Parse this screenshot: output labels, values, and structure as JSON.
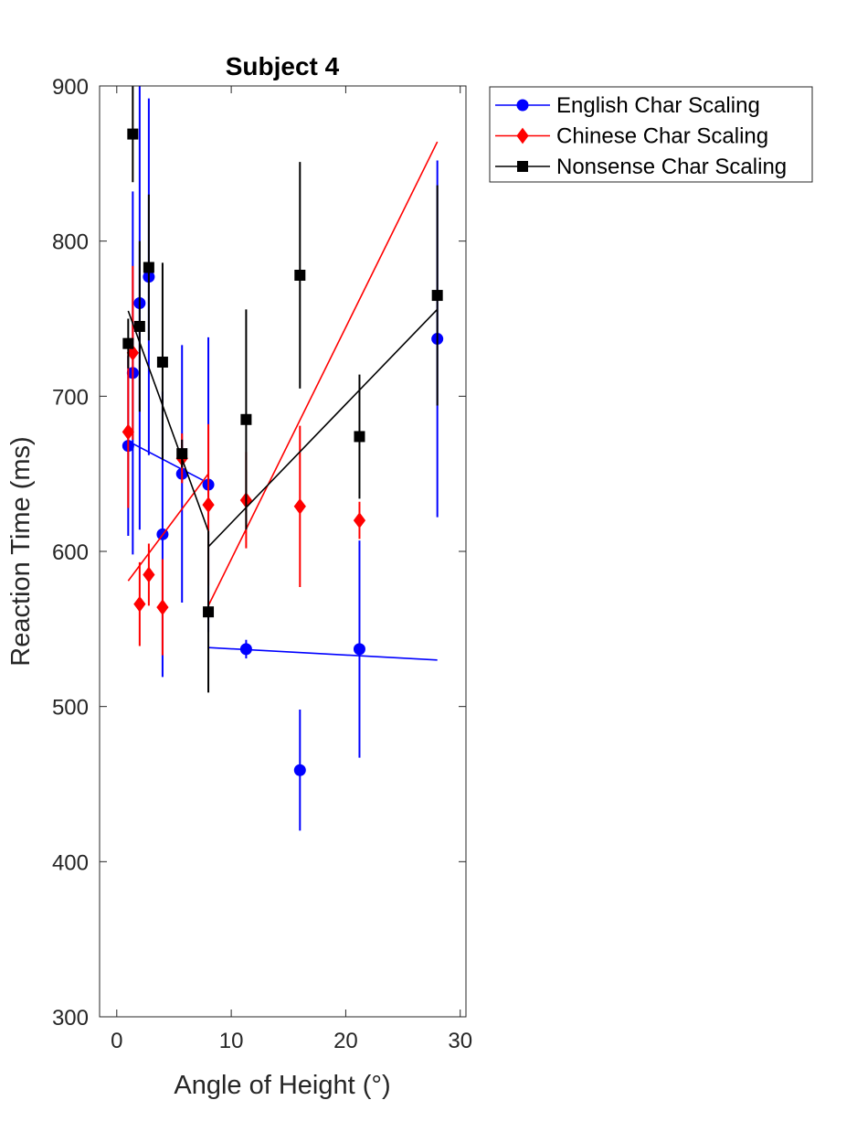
{
  "chart_data": {
    "type": "scatter",
    "title": "Subject 4",
    "xlabel": "Angle of Height (°)",
    "ylabel": "Reaction Time (ms)",
    "xlim": [
      -1.5,
      30.5
    ],
    "ylim": [
      300,
      900
    ],
    "xticks": [
      "0",
      "10",
      "20",
      "30"
    ],
    "xtick_values": [
      0,
      10,
      20,
      30
    ],
    "yticks": [
      "300",
      "400",
      "500",
      "600",
      "700",
      "800",
      "900"
    ],
    "ytick_values": [
      300,
      400,
      500,
      600,
      700,
      800,
      900
    ],
    "grid": false,
    "legend_position": "outside-top-right",
    "series": [
      {
        "name": "English Char Scaling",
        "color": "#0000ff",
        "marker": "circle",
        "points": [
          {
            "x": 1.0,
            "y": 668,
            "lo": 610,
            "hi": 726
          },
          {
            "x": 1.4,
            "y": 715,
            "lo": 598,
            "hi": 832
          },
          {
            "x": 2.0,
            "y": 760,
            "lo": 614,
            "hi": 900
          },
          {
            "x": 2.8,
            "y": 777,
            "lo": 662,
            "hi": 892
          },
          {
            "x": 4.0,
            "y": 611,
            "lo": 519,
            "hi": 703
          },
          {
            "x": 5.7,
            "y": 650,
            "lo": 567,
            "hi": 733
          },
          {
            "x": 8.0,
            "y": 643,
            "lo": 548,
            "hi": 738
          },
          {
            "x": 11.3,
            "y": 537,
            "lo": 531,
            "hi": 543
          },
          {
            "x": 16.0,
            "y": 459,
            "lo": 420,
            "hi": 498
          },
          {
            "x": 21.2,
            "y": 537,
            "lo": 467,
            "hi": 607
          },
          {
            "x": 28.0,
            "y": 737,
            "lo": 622,
            "hi": 852
          }
        ],
        "fits": [
          {
            "x": [
              1.0,
              8.0
            ],
            "y": [
              671,
              644
            ]
          },
          {
            "x": [
              8.0,
              28.0
            ],
            "y": [
              538,
              530
            ]
          }
        ]
      },
      {
        "name": "Chinese Char Scaling",
        "color": "#ff0000",
        "marker": "diamond",
        "points": [
          {
            "x": 1.0,
            "y": 677,
            "lo": 628,
            "hi": 726
          },
          {
            "x": 1.4,
            "y": 728,
            "lo": 672,
            "hi": 784
          },
          {
            "x": 2.0,
            "y": 566,
            "lo": 539,
            "hi": 593
          },
          {
            "x": 2.8,
            "y": 585,
            "lo": 565,
            "hi": 605
          },
          {
            "x": 4.0,
            "y": 564,
            "lo": 533,
            "hi": 595
          },
          {
            "x": 5.7,
            "y": 660,
            "lo": 644,
            "hi": 676
          },
          {
            "x": 8.0,
            "y": 630,
            "lo": 578,
            "hi": 682
          },
          {
            "x": 11.3,
            "y": 633,
            "lo": 602,
            "hi": 664
          },
          {
            "x": 16.0,
            "y": 629,
            "lo": 577,
            "hi": 681
          },
          {
            "x": 21.2,
            "y": 620,
            "lo": 608,
            "hi": 632
          }
        ],
        "fits": [
          {
            "x": [
              1.0,
              8.0
            ],
            "y": [
              581,
              650
            ]
          },
          {
            "x": [
              8.0,
              28.0
            ],
            "y": [
              565,
              864
            ]
          }
        ]
      },
      {
        "name": "Nonsense Char Scaling",
        "color": "#000000",
        "marker": "square",
        "points": [
          {
            "x": 1.0,
            "y": 734,
            "lo": 718,
            "hi": 750
          },
          {
            "x": 1.4,
            "y": 869,
            "lo": 838,
            "hi": 900
          },
          {
            "x": 2.0,
            "y": 745,
            "lo": 690,
            "hi": 800
          },
          {
            "x": 2.8,
            "y": 783,
            "lo": 736,
            "hi": 830
          },
          {
            "x": 4.0,
            "y": 722,
            "lo": 659,
            "hi": 786
          },
          {
            "x": 5.7,
            "y": 663,
            "lo": 654,
            "hi": 672
          },
          {
            "x": 8.0,
            "y": 561,
            "lo": 509,
            "hi": 613
          },
          {
            "x": 11.3,
            "y": 685,
            "lo": 614,
            "hi": 756
          },
          {
            "x": 16.0,
            "y": 778,
            "lo": 705,
            "hi": 851
          },
          {
            "x": 21.2,
            "y": 674,
            "lo": 634,
            "hi": 714
          },
          {
            "x": 28.0,
            "y": 765,
            "lo": 694,
            "hi": 836
          }
        ],
        "fits": [
          {
            "x": [
              1.0,
              8.0
            ],
            "y": [
              755,
              613
            ]
          },
          {
            "x": [
              8.0,
              28.0
            ],
            "y": [
              603,
              756
            ]
          }
        ]
      }
    ]
  }
}
